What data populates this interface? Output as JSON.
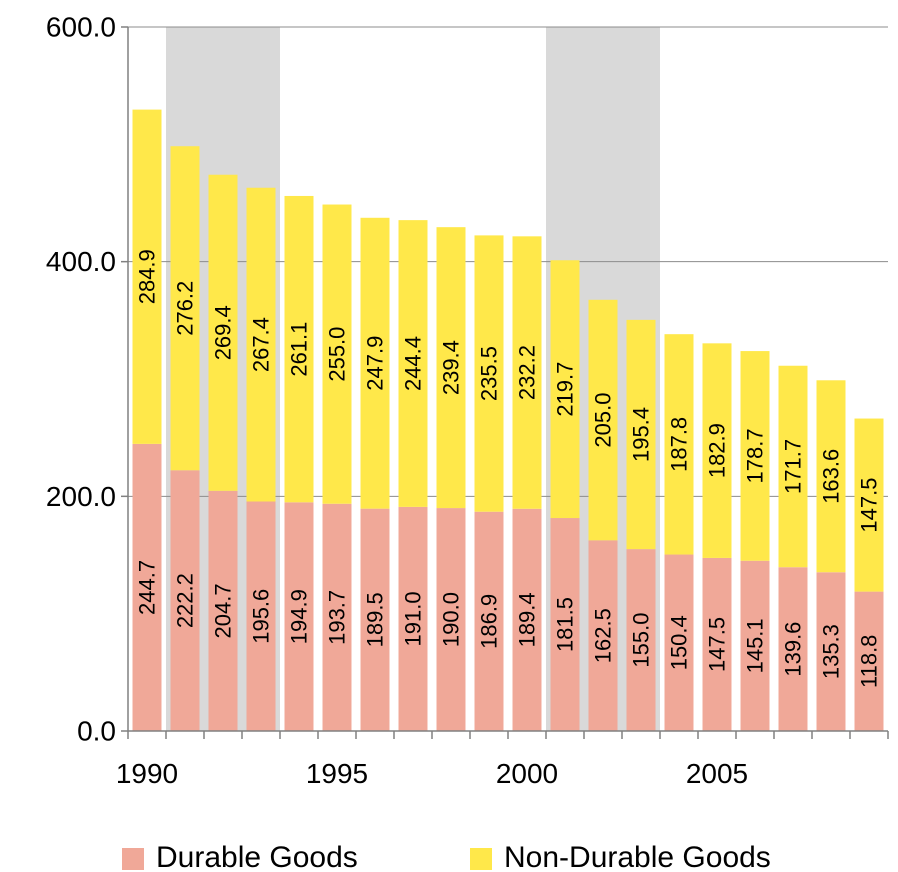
{
  "chart_data": {
    "type": "bar",
    "stacked": true,
    "categories": [
      "1990",
      "1991",
      "1992",
      "1993",
      "1994",
      "1995",
      "1996",
      "1997",
      "1998",
      "1999",
      "2000",
      "2001",
      "2002",
      "2003",
      "2004",
      "2005",
      "2006",
      "2007",
      "2008",
      "2009"
    ],
    "x_tick_labels": [
      "1990",
      "1995",
      "2000",
      "2005"
    ],
    "series": [
      {
        "name": "Durable Goods",
        "color": "#F0A898",
        "values": [
          244.7,
          222.2,
          204.7,
          195.6,
          194.9,
          193.7,
          189.5,
          191.0,
          190.0,
          186.9,
          189.4,
          181.5,
          162.5,
          155.0,
          150.4,
          147.5,
          145.1,
          139.6,
          135.3,
          118.8
        ]
      },
      {
        "name": "Non-Durable Goods",
        "color": "#FFE84A",
        "values": [
          284.9,
          276.2,
          269.4,
          267.4,
          261.1,
          255.0,
          247.9,
          244.4,
          239.4,
          235.5,
          232.2,
          219.7,
          205.0,
          195.4,
          187.8,
          182.9,
          178.7,
          171.7,
          163.6,
          147.5
        ]
      }
    ],
    "ylim": [
      0,
      600
    ],
    "y_tick_labels": [
      "0.0",
      "200.0",
      "400.0",
      "600.0"
    ],
    "recession_shading": [
      [
        "1990",
        "1992"
      ],
      [
        "2000",
        "2002"
      ],
      [
        "2009",
        "2009"
      ]
    ],
    "shading_color": "#D9D9D9",
    "grid": "horizontal",
    "legend": "bottom"
  }
}
